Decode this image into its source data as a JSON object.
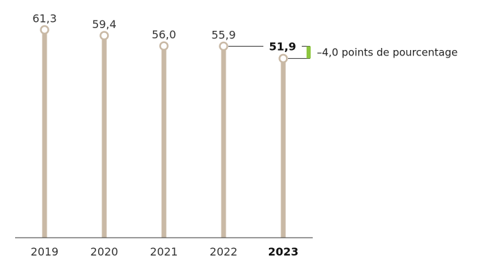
{
  "colors": {
    "stem": "#c9b9a5",
    "marker_fill": "#ffffff",
    "axis": "#333333",
    "accent": "#8dc63f",
    "text": "#333333"
  },
  "chart_data": {
    "type": "lollipop",
    "categories": [
      "2019",
      "2020",
      "2021",
      "2022",
      "2023"
    ],
    "values": [
      61.3,
      59.4,
      56.0,
      55.9,
      51.9
    ],
    "value_labels": [
      "61,3",
      "59,4",
      "56,0",
      "55,9",
      "51,9"
    ],
    "highlight_index": 4,
    "title": "",
    "xlabel": "",
    "ylabel": "",
    "grid": false,
    "annotation": {
      "text": "–4,0 points de pourcentage",
      "from_index": 3,
      "to_index": 4
    }
  }
}
